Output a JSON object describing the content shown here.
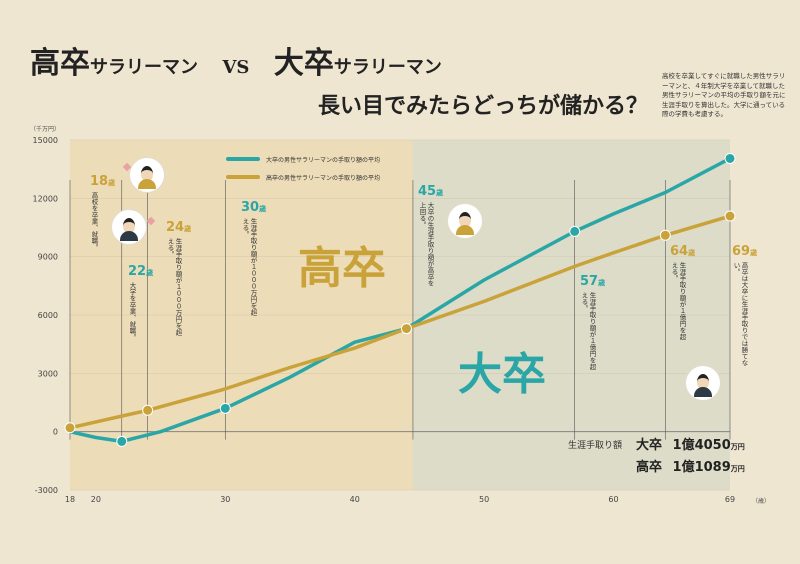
{
  "title": {
    "high_main": "高卒",
    "high_sub": "サラリーマン",
    "vs": "VS",
    "univ_main": "大卒",
    "univ_sub": "サラリーマン",
    "subtitle": "長い目でみたらどっちが儲かる？"
  },
  "description": "高校を卒業してすぐに就職した男性サラリーマンと、４年制大学を卒業して就職した男性サラリーマンの平均の手取り額を元に生涯手取りを算出した。大学に通っている際の学費も考慮する。",
  "colors": {
    "univ": "#2aa6a6",
    "high": "#c9a23a",
    "bg_left": "#ecdcb8",
    "bg_right": "#dcdcc8",
    "page": "#efe6d2"
  },
  "chart_data": {
    "type": "line",
    "y_unit": "（千万円）",
    "x_unit": "（歳）",
    "xlim": [
      18,
      69
    ],
    "ylim": [
      -3000,
      15000
    ],
    "x_ticks": [
      18,
      20,
      30,
      40,
      50,
      60,
      69
    ],
    "y_ticks": [
      -3000,
      0,
      3000,
      6000,
      9000,
      12000,
      15000
    ],
    "series": [
      {
        "name": "大卒の男性サラリーマンの手取り額の平均",
        "color": "#2aa6a6",
        "x": [
          18,
          20,
          22,
          25,
          30,
          35,
          40,
          44,
          50,
          57,
          60,
          64,
          69
        ],
        "y": [
          0,
          -300,
          -500,
          0,
          1200,
          2800,
          4600,
          5300,
          7800,
          10300,
          11200,
          12300,
          14050
        ],
        "markers": [
          [
            22,
            -500
          ],
          [
            30,
            1200
          ],
          [
            44,
            5300
          ],
          [
            57,
            10300
          ],
          [
            69,
            14050
          ]
        ]
      },
      {
        "name": "高卒の男性サラリーマンの手取り額の平均",
        "color": "#c9a23a",
        "x": [
          18,
          20,
          24,
          30,
          35,
          40,
          44,
          50,
          57,
          60,
          64,
          69
        ],
        "y": [
          200,
          500,
          1100,
          2200,
          3300,
          4300,
          5300,
          6700,
          8500,
          9200,
          10100,
          11089
        ],
        "markers": [
          [
            18,
            200
          ],
          [
            24,
            1100
          ],
          [
            44,
            5300
          ],
          [
            64,
            10100
          ],
          [
            69,
            11089
          ]
        ]
      }
    ],
    "region_labels": [
      "高卒",
      "大卒"
    ],
    "annotations": [
      {
        "age": "18",
        "unit": "歳",
        "text": "高校を卒業、就職。",
        "color": "#c9a23a"
      },
      {
        "age": "22",
        "unit": "歳",
        "text": "大学を卒業、就職。",
        "color": "#2aa6a6"
      },
      {
        "age": "24",
        "unit": "歳",
        "text": "生涯手取り額が１０００万円を超える。",
        "color": "#c9a23a"
      },
      {
        "age": "30",
        "unit": "歳",
        "text": "生涯手取り額が１０００万円を超える。",
        "color": "#2aa6a6"
      },
      {
        "age": "45",
        "unit": "歳",
        "text": "大卒の生涯手取り額が高卒を上回る。",
        "color": "#2aa6a6"
      },
      {
        "age": "57",
        "unit": "歳",
        "text": "生涯手取り額が１億円を超える。",
        "color": "#2aa6a6"
      },
      {
        "age": "64",
        "unit": "歳",
        "text": "生涯手取り額が１億円を超える。",
        "color": "#c9a23a"
      },
      {
        "age": "69",
        "unit": "歳",
        "text": "高卒は大卒に生涯手取りでは勝てない。",
        "color": "#c9a23a"
      }
    ],
    "totals": {
      "label": "生涯手取り額",
      "univ_name": "大卒",
      "univ_value": "1億4050",
      "high_name": "高卒",
      "high_value": "1億1089",
      "unit": "万円"
    }
  }
}
